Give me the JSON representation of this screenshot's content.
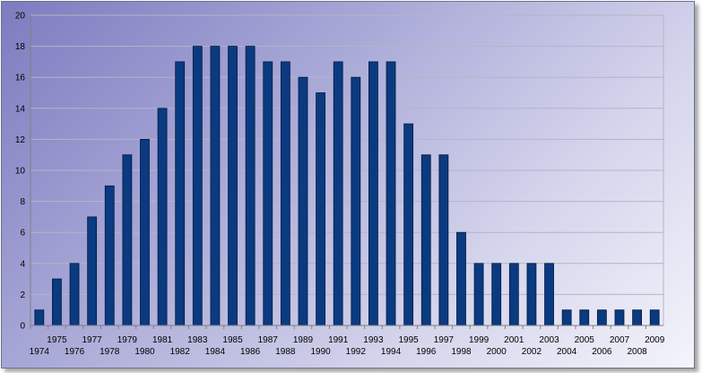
{
  "chart_data": {
    "type": "bar",
    "title": "",
    "xlabel": "",
    "ylabel": "",
    "categories": [
      "1974",
      "1975",
      "1976",
      "1977",
      "1978",
      "1979",
      "1980",
      "1981",
      "1982",
      "1983",
      "1984",
      "1985",
      "1986",
      "1987",
      "1988",
      "1989",
      "1990",
      "1991",
      "1992",
      "1993",
      "1994",
      "1995",
      "1996",
      "1997",
      "1998",
      "1999",
      "2000",
      "2001",
      "2002",
      "2003",
      "2004",
      "2005",
      "2006",
      "2007",
      "2008",
      "2009"
    ],
    "values": [
      1,
      3,
      4,
      7,
      9,
      11,
      12,
      14,
      17,
      18,
      18,
      18,
      18,
      17,
      17,
      16,
      15,
      17,
      16,
      17,
      17,
      13,
      11,
      11,
      6,
      4,
      4,
      4,
      4,
      4,
      1,
      1,
      1,
      1,
      1,
      1
    ],
    "ylim": [
      0,
      20
    ],
    "yticks": [
      0,
      2,
      4,
      6,
      8,
      10,
      12,
      14,
      16,
      18,
      20
    ],
    "grid": true,
    "legend": "none",
    "colors": {
      "bar": "#0a3a80",
      "bar_edge": "#041a40",
      "grid": "#b4b4c8",
      "axis": "#808080"
    }
  }
}
